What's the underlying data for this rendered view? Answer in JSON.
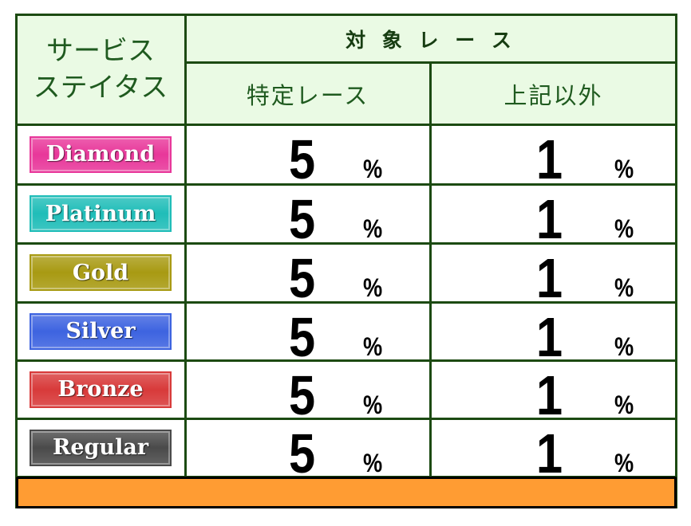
{
  "header": {
    "status_label_line1": "サービス",
    "status_label_line2": "ステイタス",
    "target_races": "対 象 レ ー ス",
    "specific_races": "特定レース",
    "other_races": "上記以外"
  },
  "rows": [
    {
      "status": "Diamond",
      "color": "#e8379a",
      "specific": "5",
      "other": "1",
      "unit": "%"
    },
    {
      "status": "Platinum",
      "color": "#1fbdb8",
      "specific": "5",
      "other": "1",
      "unit": "%"
    },
    {
      "status": "Gold",
      "color": "#a89a12",
      "specific": "5",
      "other": "1",
      "unit": "%"
    },
    {
      "status": "Silver",
      "color": "#3d63e0",
      "specific": "5",
      "other": "1",
      "unit": "%"
    },
    {
      "status": "Bronze",
      "color": "#d83a3a",
      "specific": "5",
      "other": "1",
      "unit": "%"
    },
    {
      "status": "Regular",
      "color": "#4a4a4a",
      "specific": "5",
      "other": "1",
      "unit": "%"
    }
  ],
  "colors": {
    "border": "#1c4a12",
    "header_bg": "#eafae4",
    "footer_bar": "#ff9c33"
  }
}
